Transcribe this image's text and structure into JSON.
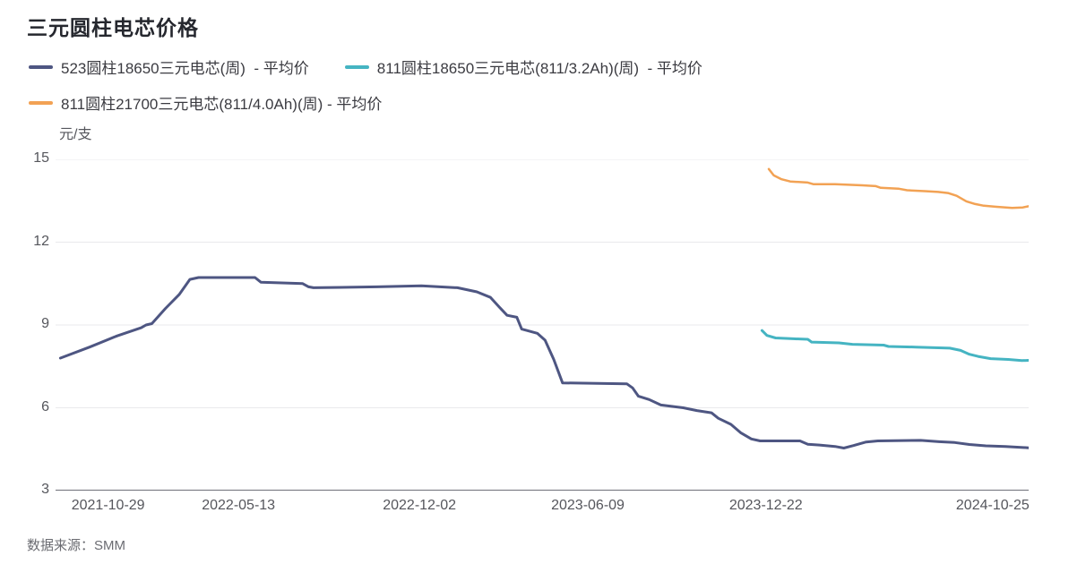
{
  "chart_data": {
    "type": "line",
    "title": "三元圆柱电芯价格",
    "unit_label": "元/支",
    "xlabel": "",
    "ylabel": "元/支",
    "ylim": [
      3,
      15
    ],
    "y_ticks_display": [
      15,
      12,
      9,
      6,
      3
    ],
    "x_tick_labels": [
      "2021-10-29",
      "2022-05-13",
      "2022-12-02",
      "2023-06-09",
      "2023-12-22",
      "2024-10-25"
    ],
    "x_tick_positions_pct": [
      5.4,
      18.8,
      37.4,
      54.7,
      73.0,
      96.3
    ],
    "grid": true,
    "grid_color": "#e9e9ec",
    "axis_color": "#6e7079",
    "legend_position": "top-left",
    "series": [
      {
        "name": "523圆柱18650三元电芯(周)  - 平均价",
        "color": "#4e5682",
        "stroke_width": 3,
        "points": [
          [
            0.5,
            7.8
          ],
          [
            3.5,
            8.2
          ],
          [
            6.3,
            8.6
          ],
          [
            8.8,
            8.9
          ],
          [
            9.3,
            9.0
          ],
          [
            9.9,
            9.05
          ],
          [
            11.3,
            9.6
          ],
          [
            12.7,
            10.1
          ],
          [
            13.8,
            10.65
          ],
          [
            14.7,
            10.72
          ],
          [
            20.5,
            10.72
          ],
          [
            21.1,
            10.55
          ],
          [
            25.4,
            10.5
          ],
          [
            26.0,
            10.38
          ],
          [
            26.5,
            10.35
          ],
          [
            33.0,
            10.38
          ],
          [
            37.6,
            10.42
          ],
          [
            41.3,
            10.35
          ],
          [
            43.3,
            10.2
          ],
          [
            44.7,
            10.0
          ],
          [
            45.6,
            9.65
          ],
          [
            46.4,
            9.35
          ],
          [
            47.4,
            9.28
          ],
          [
            47.9,
            8.85
          ],
          [
            49.5,
            8.7
          ],
          [
            50.3,
            8.45
          ],
          [
            51.2,
            7.75
          ],
          [
            52.1,
            6.9
          ],
          [
            58.7,
            6.87
          ],
          [
            59.3,
            6.72
          ],
          [
            59.9,
            6.42
          ],
          [
            61.0,
            6.3
          ],
          [
            62.2,
            6.1
          ],
          [
            64.5,
            6.0
          ],
          [
            65.9,
            5.9
          ],
          [
            67.4,
            5.82
          ],
          [
            68.1,
            5.62
          ],
          [
            69.4,
            5.4
          ],
          [
            70.4,
            5.1
          ],
          [
            71.5,
            4.87
          ],
          [
            72.4,
            4.8
          ],
          [
            76.5,
            4.8
          ],
          [
            77.3,
            4.68
          ],
          [
            78.5,
            4.65
          ],
          [
            80.1,
            4.6
          ],
          [
            81.0,
            4.54
          ],
          [
            82.0,
            4.63
          ],
          [
            83.3,
            4.76
          ],
          [
            84.5,
            4.8
          ],
          [
            88.9,
            4.82
          ],
          [
            90.8,
            4.77
          ],
          [
            92.4,
            4.74
          ],
          [
            93.9,
            4.67
          ],
          [
            95.6,
            4.62
          ],
          [
            97.6,
            4.6
          ],
          [
            100,
            4.55
          ]
        ]
      },
      {
        "name": "811圆柱18650三元电芯(811/3.2Ah)(周)  - 平均价",
        "color": "#45b4c2",
        "stroke_width": 3,
        "points": [
          [
            72.6,
            8.8
          ],
          [
            73.1,
            8.62
          ],
          [
            74.0,
            8.53
          ],
          [
            75.8,
            8.5
          ],
          [
            77.3,
            8.48
          ],
          [
            77.7,
            8.38
          ],
          [
            80.5,
            8.35
          ],
          [
            81.9,
            8.3
          ],
          [
            85.1,
            8.27
          ],
          [
            85.6,
            8.22
          ],
          [
            88.4,
            8.2
          ],
          [
            91.9,
            8.16
          ],
          [
            93.0,
            8.08
          ],
          [
            93.9,
            7.94
          ],
          [
            94.8,
            7.86
          ],
          [
            96.1,
            7.78
          ],
          [
            97.9,
            7.75
          ],
          [
            99.3,
            7.71
          ],
          [
            100,
            7.72
          ]
        ]
      },
      {
        "name": "811圆柱21700三元电芯(811/4.0Ah)(周) - 平均价",
        "color": "#f2a254",
        "stroke_width": 2.5,
        "points": [
          [
            73.3,
            14.65
          ],
          [
            73.8,
            14.42
          ],
          [
            74.6,
            14.28
          ],
          [
            75.5,
            14.2
          ],
          [
            77.3,
            14.16
          ],
          [
            77.9,
            14.1
          ],
          [
            80.1,
            14.1
          ],
          [
            82.9,
            14.06
          ],
          [
            84.3,
            14.03
          ],
          [
            84.8,
            13.97
          ],
          [
            86.6,
            13.94
          ],
          [
            87.5,
            13.88
          ],
          [
            89.3,
            13.85
          ],
          [
            90.7,
            13.82
          ],
          [
            91.7,
            13.78
          ],
          [
            92.6,
            13.68
          ],
          [
            93.6,
            13.48
          ],
          [
            94.5,
            13.38
          ],
          [
            95.4,
            13.32
          ],
          [
            96.7,
            13.28
          ],
          [
            98.3,
            13.24
          ],
          [
            99.4,
            13.26
          ],
          [
            100,
            13.3
          ]
        ]
      }
    ],
    "source_note": "数据来源：SMM"
  }
}
